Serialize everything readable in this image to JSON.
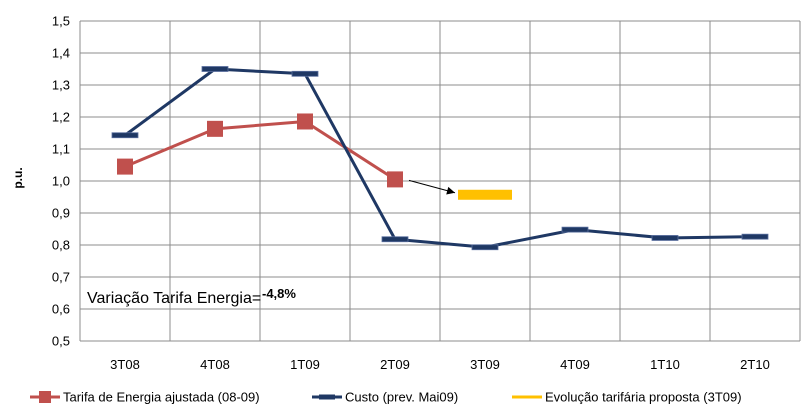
{
  "chart_data": {
    "type": "line",
    "title": "",
    "xlabel": "",
    "ylabel": "p.u.",
    "ylim": [
      0.5,
      1.5
    ],
    "yticks": [
      "0,5",
      "0,6",
      "0,7",
      "0,8",
      "0,9",
      "1,0",
      "1,1",
      "1,2",
      "1,3",
      "1,4",
      "1,5"
    ],
    "categories": [
      "3T08",
      "4T08",
      "1T09",
      "2T09",
      "3T09",
      "4T09",
      "1T10",
      "2T10"
    ],
    "grid": true,
    "legend_position": "bottom",
    "series": [
      {
        "name": "Tarifa de Energia ajustada (08-09)",
        "color": "#C0504D",
        "marker": "square",
        "values": [
          1.045,
          1.163,
          1.186,
          1.005,
          null,
          null,
          null,
          null
        ]
      },
      {
        "name": "Custo (prev. Mai09)",
        "color": "#1F3864",
        "marker": "dash",
        "values": [
          1.143,
          1.35,
          1.335,
          0.818,
          0.793,
          0.848,
          0.822,
          0.826
        ]
      },
      {
        "name": "Evolução tarifária proposta (3T09)",
        "color": "#FFC000",
        "marker": "bar",
        "values": [
          null,
          null,
          null,
          null,
          0.957,
          null,
          null,
          null
        ]
      }
    ],
    "annotation": {
      "label": "Variação Tarifa Energia=",
      "value": "-4,8%"
    }
  }
}
